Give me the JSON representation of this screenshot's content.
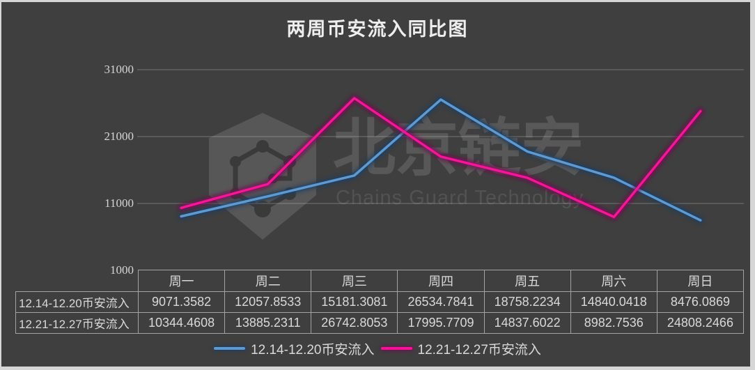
{
  "title": "两周币安流入同比图",
  "watermark": {
    "cn": "北京链安",
    "en": "Chains Guard Technology"
  },
  "chart_data": {
    "type": "line",
    "categories": [
      "周一",
      "周二",
      "周三",
      "周四",
      "周五",
      "周六",
      "周日"
    ],
    "series": [
      {
        "name": "12.14-12.20币安流入",
        "color": "#5b9bd5",
        "glow": "#1a3c61",
        "values": [
          9071.3582,
          12057.8533,
          15181.3081,
          26534.7841,
          18758.2234,
          14840.0418,
          8476.0869
        ]
      },
      {
        "name": "12.21-12.27币安流入",
        "color": "#ff0f9b",
        "glow": "#6e0f4e",
        "values": [
          10344.4608,
          13885.2311,
          26742.8053,
          17995.7709,
          14837.6022,
          8982.7536,
          24808.2466
        ]
      }
    ],
    "title": "两周币安流入同比图",
    "xlabel": "",
    "ylabel": "",
    "ylim": [
      1000,
      31000
    ],
    "yticks": [
      31000,
      21000,
      11000,
      1000
    ],
    "grid": true,
    "legend_position": "bottom"
  },
  "table": {
    "corner": "",
    "rows": [
      {
        "label": "12.14-12.20币安流入",
        "values": [
          "9071.3582",
          "12057.8533",
          "15181.3081",
          "26534.7841",
          "18758.2234",
          "14840.0418",
          "8476.0869"
        ]
      },
      {
        "label": "12.21-12.27币安流入",
        "values": [
          "10344.4608",
          "13885.2311",
          "26742.8053",
          "17995.7709",
          "14837.6022",
          "8982.7536",
          "24808.2466"
        ]
      }
    ]
  }
}
